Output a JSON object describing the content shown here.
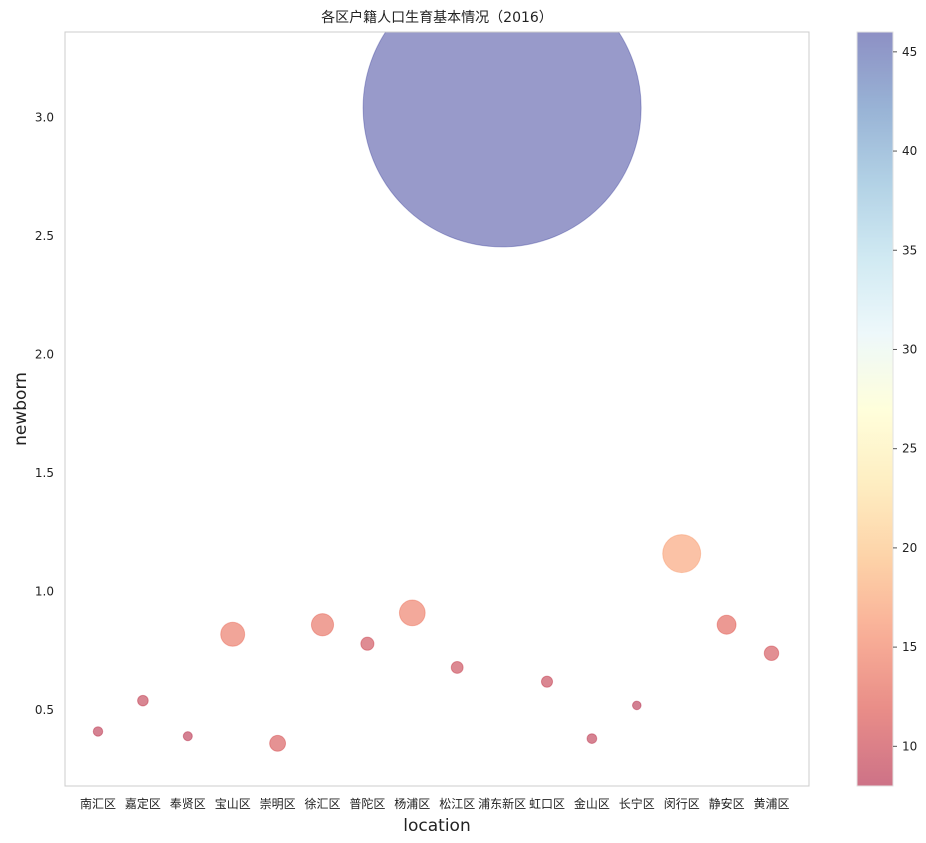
{
  "chart_data": {
    "type": "scatter",
    "title": "各区户籍人口生育基本情况（2016）",
    "xlabel": "location",
    "ylabel": "newborn",
    "ylim": [
      0.18,
      3.36
    ],
    "yticks": [
      "0.5",
      "1.0",
      "1.5",
      "2.0",
      "2.5",
      "3.0"
    ],
    "ytick_values": [
      0.5,
      1.0,
      1.5,
      2.0,
      2.5,
      3.0
    ],
    "grid": false,
    "colorbar": {
      "colormap": "RdYlBu",
      "range": [
        8,
        46
      ],
      "ticks": [
        "10",
        "15",
        "20",
        "25",
        "30",
        "35",
        "40",
        "45"
      ],
      "tick_values": [
        10,
        15,
        20,
        25,
        30,
        35,
        40,
        45
      ]
    },
    "categories": [
      "南汇区",
      "嘉定区",
      "奉贤区",
      "宝山区",
      "崇明区",
      "徐汇区",
      "普陀区",
      "杨浦区",
      "松江区",
      "浦东新区",
      "虹口区",
      "金山区",
      "长宁区",
      "闵行区",
      "静安区",
      "黄浦区"
    ],
    "points": [
      {
        "location": "南汇区",
        "newborn": 0.41,
        "value": 8.5
      },
      {
        "location": "嘉定区",
        "newborn": 0.54,
        "value": 9.0
      },
      {
        "location": "奉贤区",
        "newborn": 0.39,
        "value": 8.3
      },
      {
        "location": "宝山区",
        "newborn": 0.82,
        "value": 13.5
      },
      {
        "location": "崇明区",
        "newborn": 0.36,
        "value": 11.0
      },
      {
        "location": "徐汇区",
        "newborn": 0.86,
        "value": 13.0
      },
      {
        "location": "普陀区",
        "newborn": 0.78,
        "value": 10.0
      },
      {
        "location": "杨浦区",
        "newborn": 0.91,
        "value": 14.0
      },
      {
        "location": "松江区",
        "newborn": 0.68,
        "value": 9.5
      },
      {
        "location": "浦东新区",
        "newborn": 3.04,
        "value": 46.0
      },
      {
        "location": "虹口区",
        "newborn": 0.62,
        "value": 9.2
      },
      {
        "location": "金山区",
        "newborn": 0.38,
        "value": 8.6
      },
      {
        "location": "长宁区",
        "newborn": 0.52,
        "value": 8.1
      },
      {
        "location": "闵行区",
        "newborn": 1.16,
        "value": 17.0
      },
      {
        "location": "静安区",
        "newborn": 0.86,
        "value": 12.0
      },
      {
        "location": "黄浦区",
        "newborn": 0.74,
        "value": 10.5
      }
    ]
  }
}
